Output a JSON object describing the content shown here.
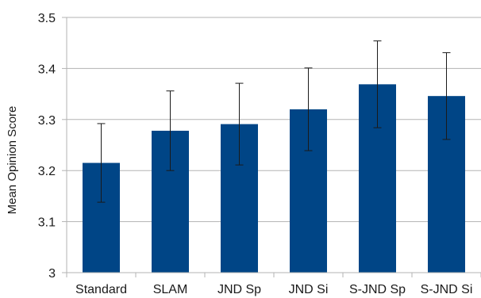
{
  "chart_data": {
    "type": "bar",
    "ylabel": "Mean Opinion Score",
    "xlabel": "",
    "categories": [
      "Standard",
      "SLAM",
      "JND Sp",
      "JND Si",
      "S-JND Sp",
      "S-JND Si"
    ],
    "values": [
      3.215,
      3.278,
      3.291,
      3.32,
      3.369,
      3.346
    ],
    "error_low": [
      3.138,
      3.2,
      3.211,
      3.239,
      3.284,
      3.261
    ],
    "error_high": [
      3.292,
      3.356,
      3.371,
      3.401,
      3.454,
      3.431
    ],
    "ylim": [
      3.0,
      3.5
    ],
    "yticks": [
      "3",
      "3.1",
      "3.2",
      "3.3",
      "3.4",
      "3.5"
    ],
    "ytick_values": [
      3.0,
      3.1,
      3.2,
      3.3,
      3.4,
      3.5
    ],
    "grid": true,
    "legend": "none",
    "bar_color": "#004586",
    "grid_color": "#b3b3b3"
  }
}
